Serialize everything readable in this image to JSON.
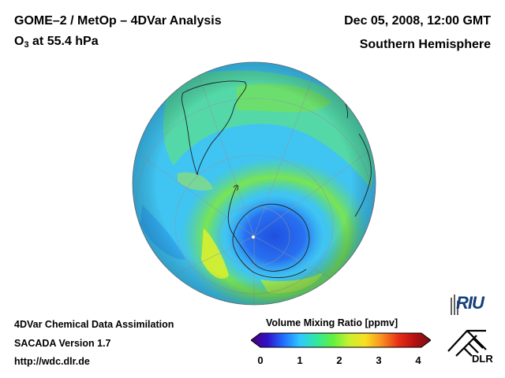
{
  "header": {
    "title": "GOME–2 / MetOp – 4DVar Analysis",
    "species": "O",
    "species_sub": "3",
    "level": " at 55.4 hPa",
    "datetime": "Dec 05, 2008, 12:00 GMT",
    "region": "Southern Hemisphere"
  },
  "footer": {
    "line1": "4DVar Chemical Data Assimilation",
    "line2": "SACADA Version 1.7",
    "line3": "http://wdc.dlr.de"
  },
  "colorbar": {
    "title": "Volume Mixing Ratio [ppmv]",
    "ticks": [
      "0",
      "1",
      "2",
      "3",
      "4"
    ],
    "range": [
      0,
      4
    ],
    "colors": [
      "#4a0070",
      "#3010c8",
      "#2070ff",
      "#30c8ff",
      "#30e8a0",
      "#60f040",
      "#c8f030",
      "#f8e020",
      "#f89020",
      "#e83018",
      "#b81010",
      "#701018"
    ]
  },
  "logos": {
    "riu": "RIU",
    "dlr": "DLR"
  },
  "map": {
    "projection": "orthographic",
    "hemisphere": "Southern Hemisphere",
    "background_color": "#40c0f0",
    "low_ozone_color": "#2860e8",
    "high_ozone_color": "#90e040"
  }
}
